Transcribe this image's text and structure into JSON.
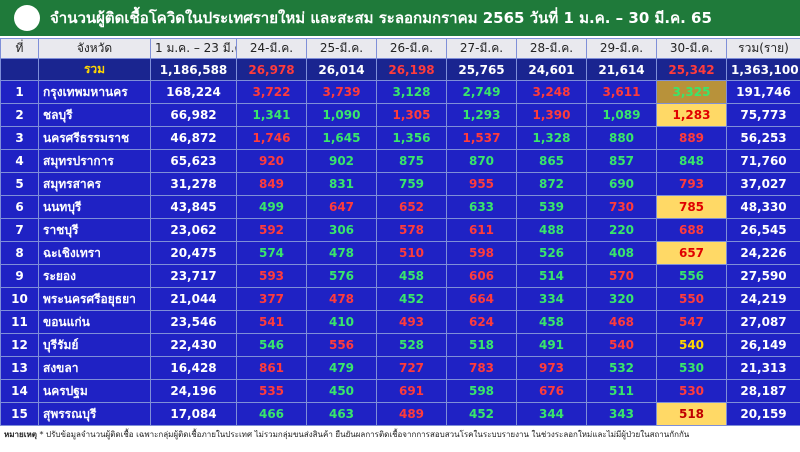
{
  "header": {
    "title": "จำนวนผู้ติดเชื้อโควิดในประเทศรายใหม่ และสะสม ระลอกมกราคม 2565 วันที่ 1 ม.ค. – 30 มี.ค. 65"
  },
  "table": {
    "columns": [
      "ที่",
      "จังหวัด",
      "1 ม.ค. – 23 มี.ค.",
      "24-มี.ค.",
      "25-มี.ค.",
      "26-มี.ค.",
      "27-มี.ค.",
      "28-มี.ค.",
      "29-มี.ค.",
      "30-มี.ค.",
      "รวม(ราย)"
    ],
    "total": {
      "label": "รวม",
      "base": "1,186,588",
      "days": [
        "26,978",
        "26,014",
        "26,198",
        "25,765",
        "24,601",
        "21,614",
        "25,342"
      ],
      "sum": "1,363,100",
      "colors": [
        "#ff3b3b",
        "#ffffff",
        "#ff3b3b",
        "#ffffff",
        "#ffffff",
        "#ffffff",
        "#ff3b3b"
      ]
    },
    "rows": [
      {
        "no": "1",
        "province": "กรุงเทพมหานคร",
        "base": "168,224",
        "days": [
          "3,722",
          "3,739",
          "3,128",
          "2,749",
          "3,248",
          "3,611",
          "3,325"
        ],
        "sum": "191,746",
        "colors": [
          "#ff3b3b",
          "#ff3b3b",
          "#39e66b",
          "#39e66b",
          "#ff3b3b",
          "#ff3b3b",
          "#39e66b"
        ],
        "highlight": "#b8923a"
      },
      {
        "no": "2",
        "province": "ชลบุรี",
        "base": "66,982",
        "days": [
          "1,341",
          "1,090",
          "1,305",
          "1,293",
          "1,390",
          "1,089",
          "1,283"
        ],
        "sum": "75,773",
        "colors": [
          "#39e66b",
          "#39e66b",
          "#ff3b3b",
          "#39e66b",
          "#ff3b3b",
          "#39e66b",
          "#e00000"
        ],
        "highlight": "#ffd966"
      },
      {
        "no": "3",
        "province": "นครศรีธรรมราช",
        "base": "46,872",
        "days": [
          "1,746",
          "1,645",
          "1,356",
          "1,537",
          "1,328",
          "880",
          "889"
        ],
        "sum": "56,253",
        "colors": [
          "#ff3b3b",
          "#39e66b",
          "#39e66b",
          "#ff3b3b",
          "#39e66b",
          "#39e66b",
          "#ff3b3b"
        ]
      },
      {
        "no": "4",
        "province": "สมุทรปราการ",
        "base": "65,623",
        "days": [
          "920",
          "902",
          "875",
          "870",
          "865",
          "857",
          "848"
        ],
        "sum": "71,760",
        "colors": [
          "#ff3b3b",
          "#39e66b",
          "#39e66b",
          "#39e66b",
          "#39e66b",
          "#39e66b",
          "#39e66b"
        ]
      },
      {
        "no": "5",
        "province": "สมุทรสาคร",
        "base": "31,278",
        "days": [
          "849",
          "831",
          "759",
          "955",
          "872",
          "690",
          "793"
        ],
        "sum": "37,027",
        "colors": [
          "#ff3b3b",
          "#39e66b",
          "#39e66b",
          "#ff3b3b",
          "#39e66b",
          "#39e66b",
          "#ff3b3b"
        ]
      },
      {
        "no": "6",
        "province": "นนทบุรี",
        "base": "43,845",
        "days": [
          "499",
          "647",
          "652",
          "633",
          "539",
          "730",
          "785"
        ],
        "sum": "48,330",
        "colors": [
          "#39e66b",
          "#ff3b3b",
          "#ff3b3b",
          "#39e66b",
          "#39e66b",
          "#ff3b3b",
          "#e00000"
        ],
        "highlight": "#ffd966"
      },
      {
        "no": "7",
        "province": "ราชบุรี",
        "base": "23,062",
        "days": [
          "592",
          "306",
          "578",
          "611",
          "488",
          "220",
          "688"
        ],
        "sum": "26,545",
        "colors": [
          "#ff3b3b",
          "#39e66b",
          "#ff3b3b",
          "#ff3b3b",
          "#39e66b",
          "#39e66b",
          "#ff3b3b"
        ]
      },
      {
        "no": "8",
        "province": "ฉะเชิงเทรา",
        "base": "20,475",
        "days": [
          "574",
          "478",
          "510",
          "598",
          "526",
          "408",
          "657"
        ],
        "sum": "24,226",
        "colors": [
          "#39e66b",
          "#39e66b",
          "#ff3b3b",
          "#ff3b3b",
          "#39e66b",
          "#39e66b",
          "#e00000"
        ],
        "highlight": "#ffd966"
      },
      {
        "no": "9",
        "province": "ระยอง",
        "base": "23,717",
        "days": [
          "593",
          "576",
          "458",
          "606",
          "514",
          "570",
          "556"
        ],
        "sum": "27,590",
        "colors": [
          "#ff3b3b",
          "#39e66b",
          "#39e66b",
          "#ff3b3b",
          "#39e66b",
          "#ff3b3b",
          "#39e66b"
        ]
      },
      {
        "no": "10",
        "province": "พระนครศรีอยุธยา",
        "base": "21,044",
        "days": [
          "377",
          "478",
          "452",
          "664",
          "334",
          "320",
          "550"
        ],
        "sum": "24,219",
        "colors": [
          "#ff3b3b",
          "#ff3b3b",
          "#39e66b",
          "#ff3b3b",
          "#39e66b",
          "#39e66b",
          "#ff3b3b"
        ]
      },
      {
        "no": "11",
        "province": "ขอนแก่น",
        "base": "23,546",
        "days": [
          "541",
          "410",
          "493",
          "624",
          "458",
          "468",
          "547"
        ],
        "sum": "27,087",
        "colors": [
          "#ff3b3b",
          "#39e66b",
          "#ff3b3b",
          "#ff3b3b",
          "#39e66b",
          "#ff3b3b",
          "#ff3b3b"
        ]
      },
      {
        "no": "12",
        "province": "บุรีรัมย์",
        "base": "22,430",
        "days": [
          "546",
          "556",
          "528",
          "518",
          "491",
          "540",
          "540"
        ],
        "sum": "26,149",
        "colors": [
          "#39e66b",
          "#ff3b3b",
          "#39e66b",
          "#39e66b",
          "#39e66b",
          "#ff3b3b",
          "#ffd700"
        ]
      },
      {
        "no": "13",
        "province": "สงขลา",
        "base": "16,428",
        "days": [
          "861",
          "479",
          "727",
          "783",
          "973",
          "532",
          "530"
        ],
        "sum": "21,313",
        "colors": [
          "#ff3b3b",
          "#39e66b",
          "#ff3b3b",
          "#ff3b3b",
          "#ff3b3b",
          "#39e66b",
          "#39e66b"
        ]
      },
      {
        "no": "14",
        "province": "นครปฐม",
        "base": "24,196",
        "days": [
          "535",
          "450",
          "691",
          "598",
          "676",
          "511",
          "530"
        ],
        "sum": "28,187",
        "colors": [
          "#ff3b3b",
          "#39e66b",
          "#ff3b3b",
          "#39e66b",
          "#ff3b3b",
          "#39e66b",
          "#ff3b3b"
        ]
      },
      {
        "no": "15",
        "province": "สุพรรณบุรี",
        "base": "17,084",
        "days": [
          "466",
          "463",
          "489",
          "452",
          "344",
          "343",
          "518"
        ],
        "sum": "20,159",
        "colors": [
          "#39e66b",
          "#39e66b",
          "#ff3b3b",
          "#39e66b",
          "#39e66b",
          "#39e66b",
          "#c00000"
        ],
        "highlight": "#ffd966"
      }
    ]
  },
  "footer": {
    "label": "หมายเหตุ",
    "note": "* ปรับข้อมูลจำนวนผู้ติดเชื้อ เฉพาะกลุ่มผู้ติดเชื้อภายในประเทศ ไม่รวมกลุ่มขนส่งสินค้า ยืนยันผลการติดเชื้อจากการสอบสวนโรคในระบบรายงาน ในช่วงระลอกใหม่และไม่มีผู้ป่วยในสถานกักกัน"
  }
}
